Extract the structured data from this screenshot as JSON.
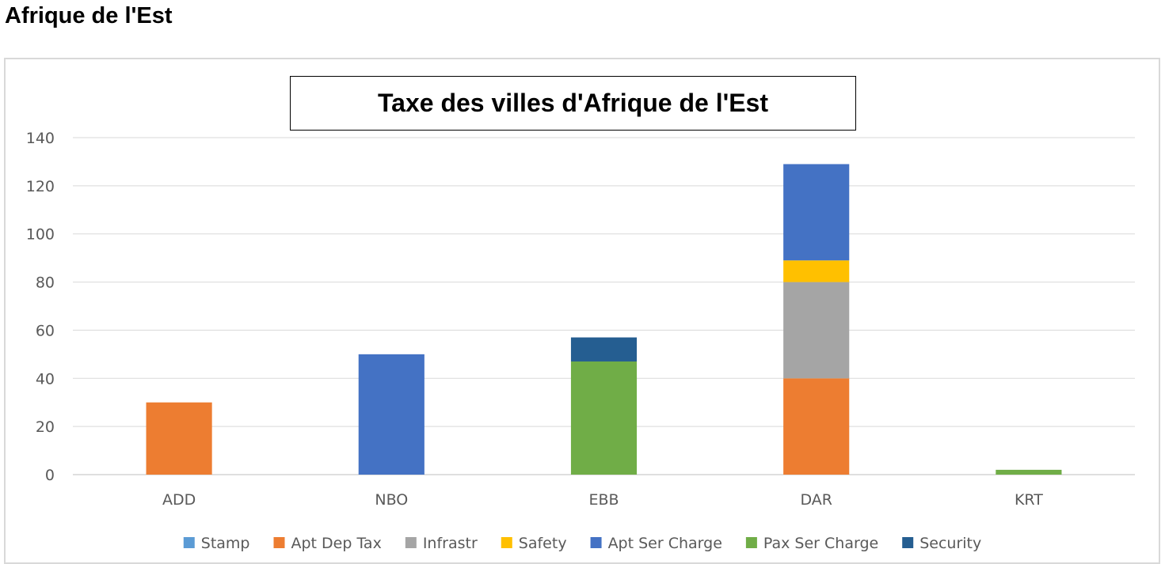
{
  "page": {
    "heading": "Afrique de l'Est"
  },
  "chart_data": {
    "type": "bar",
    "stacked": true,
    "title": "Taxe des villes d'Afrique de l'Est",
    "xlabel": "",
    "ylabel": "",
    "ylim": [
      0,
      140
    ],
    "yticks": [
      0,
      20,
      40,
      60,
      80,
      100,
      120,
      140
    ],
    "grid": true,
    "legend_position": "bottom",
    "categories": [
      "ADD",
      "NBO",
      "EBB",
      "DAR",
      "KRT"
    ],
    "series": [
      {
        "name": "Stamp",
        "color": "#5b9bd5",
        "values": [
          0,
          0,
          0,
          0,
          0
        ]
      },
      {
        "name": "Apt Dep Tax",
        "color": "#ed7d31",
        "values": [
          30,
          0,
          0,
          40,
          0
        ]
      },
      {
        "name": "Infrastr",
        "color": "#a5a5a5",
        "values": [
          0,
          0,
          0,
          40,
          0
        ]
      },
      {
        "name": "Safety",
        "color": "#ffc000",
        "values": [
          0,
          0,
          0,
          9,
          0
        ]
      },
      {
        "name": "Apt Ser Charge",
        "color": "#4472c4",
        "values": [
          0,
          50,
          0,
          40,
          0
        ]
      },
      {
        "name": "Pax Ser Charge",
        "color": "#70ad47",
        "values": [
          0,
          0,
          47,
          0,
          2
        ]
      },
      {
        "name": "Security",
        "color": "#255e91",
        "values": [
          0,
          0,
          10,
          0,
          0
        ]
      }
    ]
  }
}
